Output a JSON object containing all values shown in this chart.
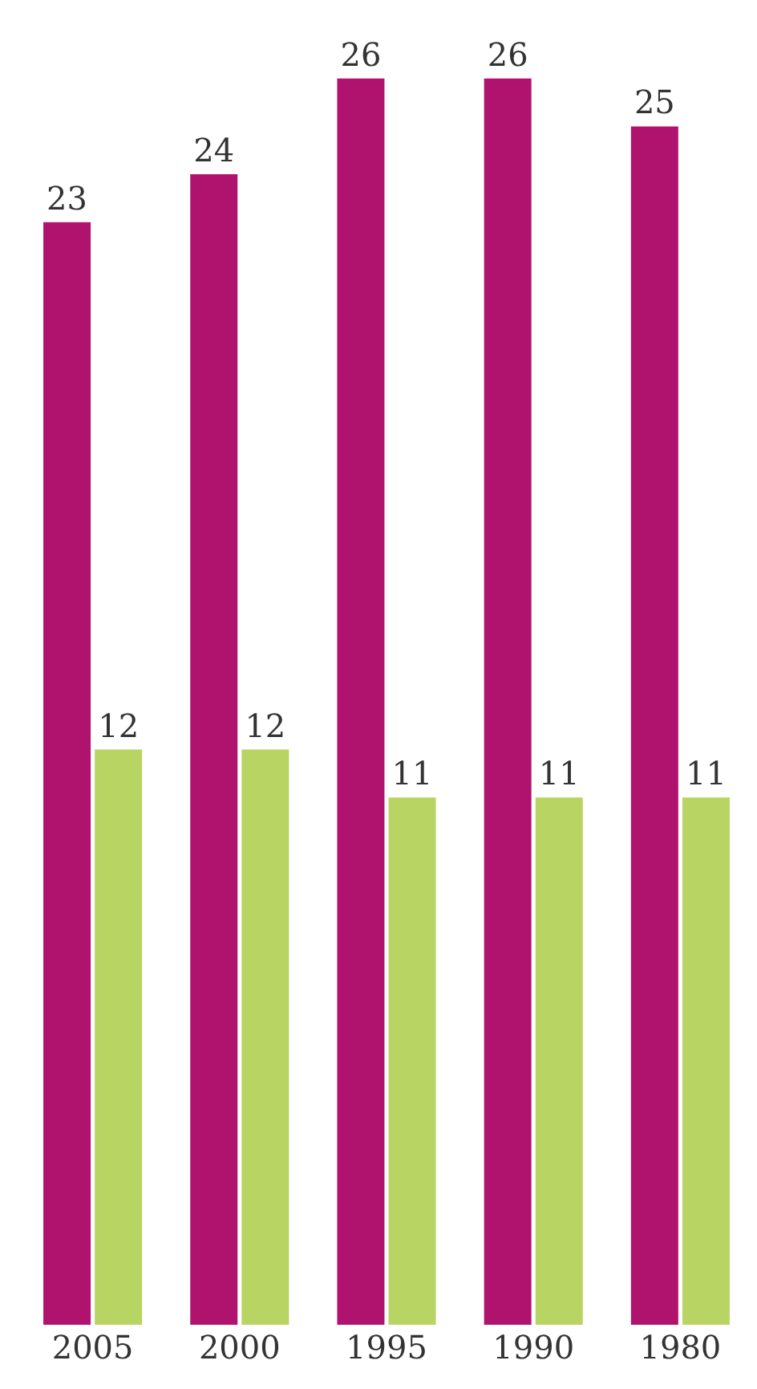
{
  "chart_data": {
    "type": "bar",
    "categories": [
      "2005",
      "2000",
      "1995",
      "1990",
      "1980"
    ],
    "series": [
      {
        "color": "#b0136e",
        "values": [
          23,
          24,
          26,
          26,
          25
        ]
      },
      {
        "color": "#b8d563",
        "values": [
          12,
          12,
          11,
          11,
          11
        ]
      }
    ],
    "data_labels": true
  }
}
